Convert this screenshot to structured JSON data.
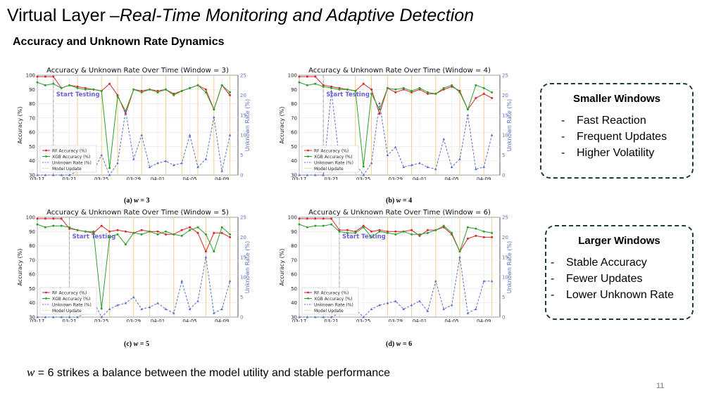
{
  "slide": {
    "title_main": "Virtual Layer",
    "title_dash": "–",
    "title_italic": "Real-Time Monitoring and Adaptive Detection",
    "subtitle": "Accuracy and Unknown Rate Dynamics",
    "footer_w": "w",
    "footer_text": " = 6 strikes a balance between the model utility and stable performance",
    "page_number": "11"
  },
  "boxes": {
    "smaller": {
      "title": "Smaller Windows",
      "dash": "-",
      "items": [
        "Fast Reaction",
        "Frequent Updates",
        "Higher Volatility"
      ]
    },
    "larger": {
      "title": "Larger Windows",
      "dash": "-",
      "items": [
        "Stable Accuracy",
        "Fewer Updates",
        "Lower Unknown Rate"
      ]
    }
  },
  "captions": [
    {
      "label": "(a)",
      "w": "w",
      "rest": " = 3"
    },
    {
      "label": "(b)",
      "w": "w",
      "rest": " = 4"
    },
    {
      "label": "(c)",
      "w": "w",
      "rest": " = 5"
    },
    {
      "label": "(d)",
      "w": "w",
      "rest": " = 6"
    }
  ],
  "colors": {
    "rf": "#d62728",
    "xgb": "#2ca02c",
    "unknown": "#5b6fc7",
    "update": "#f5c77e",
    "annot": "#6b5fd6"
  },
  "chart_data": [
    {
      "type": "line",
      "title": "Accuracy & Unknown Rate Over Time (Window = 3)",
      "xlabel": "",
      "ylabel": "Accuracy (%)",
      "y2label": "Unknown Rate (%)",
      "ylim": [
        30,
        100
      ],
      "y2lim": [
        0,
        25
      ],
      "yticks": [
        30,
        40,
        50,
        60,
        70,
        80,
        90,
        100
      ],
      "y2ticks": [
        0,
        5,
        10,
        15,
        20,
        25
      ],
      "xlim": [
        0,
        25
      ],
      "xticks": [
        {
          "x": 0,
          "label": "03-17"
        },
        {
          "x": 4,
          "label": "03-21"
        },
        {
          "x": 8,
          "label": "03-25"
        },
        {
          "x": 12,
          "label": "03-29"
        },
        {
          "x": 15,
          "label": "04-01"
        },
        {
          "x": 19,
          "label": "04-05"
        },
        {
          "x": 23,
          "label": "04-09"
        }
      ],
      "annotation": {
        "text": "Start Testing",
        "x": 2
      },
      "legend": {
        "position": "lower-left",
        "entries": [
          "RF Accuracy (%)",
          "XGB Accuracy (%)",
          "Unknown Rate (%)",
          "Model Update"
        ]
      },
      "model_updates": [
        2,
        5,
        8,
        10,
        13,
        16,
        18,
        20,
        22,
        24
      ],
      "series": [
        {
          "name": "RF Accuracy (%)",
          "axis": "left",
          "x": [
            0,
            1,
            2,
            3,
            4,
            5,
            6,
            7,
            8,
            9,
            10,
            11,
            12,
            13,
            14,
            15,
            16,
            17,
            18,
            19,
            20,
            21,
            22,
            23,
            24
          ],
          "values": [
            99,
            99,
            99,
            91,
            93,
            92,
            91,
            90,
            89,
            94,
            86,
            73,
            90,
            89,
            90,
            89,
            90,
            87,
            89,
            91,
            93,
            90,
            76,
            93,
            86
          ]
        },
        {
          "name": "XGB Accuracy (%)",
          "axis": "left",
          "x": [
            0,
            1,
            2,
            3,
            4,
            5,
            6,
            7,
            8,
            9,
            10,
            11,
            12,
            13,
            14,
            15,
            16,
            17,
            18,
            19,
            20,
            21,
            22,
            23,
            24
          ],
          "values": [
            95,
            93,
            94,
            91,
            93,
            91,
            90,
            90,
            89,
            35,
            85,
            75,
            90,
            88,
            90,
            88,
            90,
            86,
            89,
            91,
            93,
            88,
            76,
            93,
            88
          ]
        },
        {
          "name": "Unknown Rate (%)",
          "axis": "right",
          "x": [
            0,
            1,
            2,
            3,
            4,
            5,
            6,
            7,
            8,
            9,
            10,
            11,
            12,
            13,
            14,
            15,
            16,
            17,
            18,
            19,
            20,
            21,
            22,
            23,
            24
          ],
          "values": [
            0,
            0,
            0,
            0,
            0,
            1,
            3,
            1,
            5,
            0,
            3,
            16,
            4,
            10,
            2,
            3,
            3.5,
            2.5,
            3,
            10,
            2,
            4,
            14.5,
            1,
            10
          ]
        }
      ]
    },
    {
      "type": "line",
      "title": "Accuracy & Unknown Rate Over Time (Window = 4)",
      "xlabel": "",
      "ylabel": "Accuracy (%)",
      "y2label": "Unknown Rate (%)",
      "ylim": [
        30,
        100
      ],
      "y2lim": [
        0,
        25
      ],
      "yticks": [
        30,
        40,
        50,
        60,
        70,
        80,
        90,
        100
      ],
      "y2ticks": [
        0,
        5,
        10,
        15,
        20,
        25
      ],
      "xlim": [
        0,
        25
      ],
      "xticks": [
        {
          "x": 0,
          "label": "03-17"
        },
        {
          "x": 4,
          "label": "03-21"
        },
        {
          "x": 8,
          "label": "03-25"
        },
        {
          "x": 12,
          "label": "03-29"
        },
        {
          "x": 15,
          "label": "04-01"
        },
        {
          "x": 19,
          "label": "04-05"
        },
        {
          "x": 23,
          "label": "04-09"
        }
      ],
      "annotation": {
        "text": "Start Testing",
        "x": 3
      },
      "legend": {
        "position": "lower-left",
        "entries": [
          "RF Accuracy (%)",
          "XGB Accuracy (%)",
          "Unknown Rate (%)",
          "Model Update"
        ]
      },
      "model_updates": [
        3,
        7,
        9,
        11,
        14,
        17,
        20,
        23
      ],
      "series": [
        {
          "name": "RF Accuracy (%)",
          "axis": "left",
          "x": [
            0,
            1,
            2,
            3,
            4,
            5,
            6,
            7,
            8,
            9,
            10,
            11,
            12,
            13,
            14,
            15,
            16,
            17,
            18,
            19,
            20,
            21,
            22,
            23,
            24
          ],
          "values": [
            99,
            99,
            99,
            93,
            92,
            91,
            90,
            89,
            94,
            90,
            73,
            91,
            88,
            90,
            88,
            90,
            87,
            87,
            90,
            92,
            89,
            76,
            84,
            87,
            84
          ]
        },
        {
          "name": "XGB Accuracy (%)",
          "axis": "left",
          "x": [
            0,
            1,
            2,
            3,
            4,
            5,
            6,
            7,
            8,
            9,
            10,
            11,
            12,
            13,
            14,
            15,
            16,
            17,
            18,
            19,
            20,
            21,
            22,
            23,
            24
          ],
          "values": [
            95,
            93,
            94,
            92,
            91,
            90,
            90,
            89,
            36,
            87,
            76,
            91,
            90,
            91,
            89,
            91,
            88,
            87,
            91,
            93,
            88,
            76,
            93,
            91,
            88
          ]
        },
        {
          "name": "Unknown Rate (%)",
          "axis": "right",
          "x": [
            0,
            1,
            2,
            3,
            4,
            5,
            6,
            7,
            8,
            9,
            10,
            11,
            12,
            13,
            14,
            15,
            16,
            17,
            18,
            19,
            20,
            21,
            22,
            23,
            24
          ],
          "values": [
            0,
            0,
            0,
            0,
            21,
            4,
            5,
            3,
            0,
            3,
            18,
            5,
            7,
            2,
            2.5,
            3,
            2,
            1.5,
            9,
            2,
            4,
            15,
            1.5,
            2,
            10
          ]
        }
      ]
    },
    {
      "type": "line",
      "title": "Accuracy & Unknown Rate Over Time (Window = 5)",
      "xlabel": "",
      "ylabel": "Accuracy (%)",
      "y2label": "Unknown Rate (%)",
      "ylim": [
        30,
        100
      ],
      "y2lim": [
        0,
        25
      ],
      "yticks": [
        30,
        40,
        50,
        60,
        70,
        80,
        90,
        100
      ],
      "y2ticks": [
        0,
        5,
        10,
        15,
        20,
        25
      ],
      "xlim": [
        0,
        25
      ],
      "xticks": [
        {
          "x": 0,
          "label": "03-17"
        },
        {
          "x": 4,
          "label": "03-21"
        },
        {
          "x": 8,
          "label": "03-25"
        },
        {
          "x": 12,
          "label": "03-29"
        },
        {
          "x": 15,
          "label": "04-01"
        },
        {
          "x": 19,
          "label": "04-05"
        },
        {
          "x": 23,
          "label": "04-09"
        }
      ],
      "annotation": {
        "text": "Start Testing",
        "x": 4
      },
      "legend": {
        "position": "lower-left",
        "entries": [
          "RF Accuracy (%)",
          "XGB Accuracy (%)",
          "Unknown Rate (%)",
          "Model Update"
        ]
      },
      "model_updates": [
        4,
        9,
        12,
        14,
        17,
        21,
        24
      ],
      "series": [
        {
          "name": "RF Accuracy (%)",
          "axis": "left",
          "x": [
            0,
            1,
            2,
            3,
            4,
            5,
            6,
            7,
            8,
            9,
            10,
            11,
            12,
            13,
            14,
            15,
            16,
            17,
            18,
            19,
            20,
            21,
            22,
            23,
            24
          ],
          "values": [
            99,
            99,
            99,
            99,
            92,
            91,
            90,
            89,
            94,
            90,
            91,
            90,
            89,
            91,
            90,
            90,
            88,
            88,
            91,
            93,
            89,
            76,
            89,
            89,
            86
          ]
        },
        {
          "name": "XGB Accuracy (%)",
          "axis": "left",
          "x": [
            0,
            1,
            2,
            3,
            4,
            5,
            6,
            7,
            8,
            9,
            10,
            11,
            12,
            13,
            14,
            15,
            16,
            17,
            18,
            19,
            20,
            21,
            22,
            23,
            24
          ],
          "values": [
            95,
            93,
            94,
            94,
            93,
            91,
            90,
            90,
            36,
            86,
            88,
            81,
            89,
            88,
            90,
            88,
            90,
            88,
            87,
            91,
            93,
            88,
            76,
            93,
            88
          ]
        },
        {
          "name": "Unknown Rate (%)",
          "axis": "right",
          "x": [
            0,
            1,
            2,
            3,
            4,
            5,
            6,
            7,
            8,
            9,
            10,
            11,
            12,
            13,
            14,
            15,
            16,
            17,
            18,
            19,
            20,
            21,
            22,
            23,
            24
          ],
          "values": [
            0,
            0,
            0,
            0,
            0,
            0,
            1,
            4,
            0,
            2,
            3,
            3.5,
            5,
            2,
            2.5,
            3.5,
            2,
            1,
            9,
            2,
            4,
            15,
            1,
            2,
            9
          ]
        }
      ]
    },
    {
      "type": "line",
      "title": "Accuracy & Unknown Rate Over Time (Window = 6)",
      "xlabel": "",
      "ylabel": "Accuracy (%)",
      "y2label": "Unknown Rate (%)",
      "ylim": [
        30,
        100
      ],
      "y2lim": [
        0,
        25
      ],
      "yticks": [
        30,
        40,
        50,
        60,
        70,
        80,
        90,
        100
      ],
      "y2ticks": [
        0,
        5,
        10,
        15,
        20,
        25
      ],
      "xlim": [
        0,
        25
      ],
      "xticks": [
        {
          "x": 0,
          "label": "03-17"
        },
        {
          "x": 4,
          "label": "03-21"
        },
        {
          "x": 8,
          "label": "03-25"
        },
        {
          "x": 12,
          "label": "03-29"
        },
        {
          "x": 15,
          "label": "04-01"
        },
        {
          "x": 19,
          "label": "04-05"
        },
        {
          "x": 23,
          "label": "04-09"
        }
      ],
      "annotation": {
        "text": "Start Testing",
        "x": 5
      },
      "legend": {
        "position": "lower-left",
        "entries": [
          "RF Accuracy (%)",
          "XGB Accuracy (%)",
          "Unknown Rate (%)",
          "Model Update"
        ]
      },
      "model_updates": [
        5,
        11,
        14,
        17,
        20,
        24
      ],
      "series": [
        {
          "name": "RF Accuracy (%)",
          "axis": "left",
          "x": [
            0,
            1,
            2,
            3,
            4,
            5,
            6,
            7,
            8,
            9,
            10,
            11,
            12,
            13,
            14,
            15,
            16,
            17,
            18,
            19,
            20,
            21,
            22,
            23,
            24
          ],
          "values": [
            99,
            99,
            99,
            99,
            99,
            91,
            91,
            90,
            94,
            90,
            91,
            90,
            90,
            90,
            91,
            87,
            91,
            91,
            93,
            88,
            76,
            85,
            87,
            86,
            86
          ]
        },
        {
          "name": "XGB Accuracy (%)",
          "axis": "left",
          "x": [
            0,
            1,
            2,
            3,
            4,
            5,
            6,
            7,
            8,
            9,
            10,
            11,
            12,
            13,
            14,
            15,
            16,
            17,
            18,
            19,
            20,
            21,
            22,
            23,
            24
          ],
          "values": [
            95,
            93,
            94,
            94,
            95,
            90,
            89,
            89,
            93,
            86,
            90,
            89,
            88,
            90,
            88,
            88,
            89,
            91,
            94,
            89,
            76,
            93,
            92,
            90,
            89
          ]
        },
        {
          "name": "Unknown Rate (%)",
          "axis": "right",
          "x": [
            0,
            1,
            2,
            3,
            4,
            5,
            6,
            7,
            8,
            9,
            10,
            11,
            12,
            13,
            14,
            15,
            16,
            17,
            18,
            19,
            20,
            21,
            22,
            23,
            24
          ],
          "values": [
            0,
            0,
            0,
            0,
            0,
            1,
            4,
            2,
            0,
            2,
            3,
            3.5,
            4,
            2,
            3,
            4,
            1.5,
            9,
            2,
            3,
            15,
            1,
            2,
            9,
            9
          ]
        }
      ]
    }
  ]
}
